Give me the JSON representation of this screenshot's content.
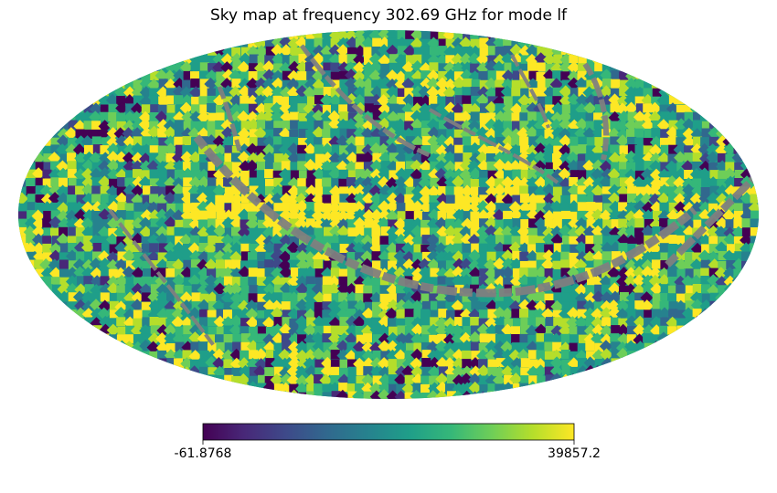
{
  "chart_data": {
    "type": "heatmap",
    "projection": "mollweide",
    "title": "Sky map at frequency 302.69 GHz for mode lf",
    "colormap": "viridis",
    "colormap_stops": [
      "#440154",
      "#482878",
      "#3e4989",
      "#31688e",
      "#26828e",
      "#1f9e89",
      "#35b779",
      "#6ece58",
      "#b5de2b",
      "#fde725"
    ],
    "bad_value_color": "#808080",
    "colorbar": {
      "min": -61.8768,
      "max": 39857.2,
      "min_label": "-61.8768",
      "max_label": "39857.2",
      "orientation": "horizontal",
      "placement": "bottom"
    },
    "grid": false
  }
}
